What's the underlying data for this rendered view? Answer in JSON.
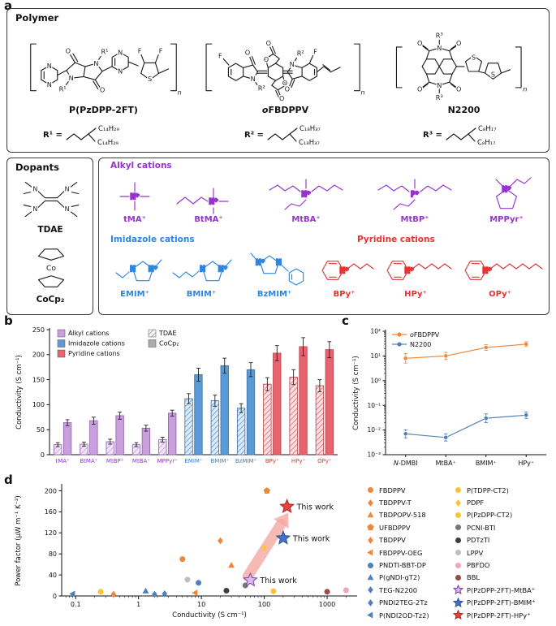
{
  "panels": {
    "a": "a",
    "b": "b",
    "c": "c",
    "d": "d"
  },
  "panel_a": {
    "polymer_box_title": "Polymer",
    "atoms": {
      "N": "N",
      "O": "O",
      "S": "S",
      "F": "F",
      "Co": "Co",
      "Nplus": "N⁺",
      "Pplus": "P⁺",
      "n": "n"
    },
    "polymers": [
      {
        "name": "P(PzDPP-2FT)",
        "r_site": "R¹",
        "r_def": "R¹ =",
        "chains": [
          "C₁₄H₂₉",
          "C₁₄H₂₉"
        ]
      },
      {
        "name_italic": "o",
        "name": "FBDPPV",
        "r_site": "R²",
        "r_def": "R² =",
        "chains": [
          "C₁₈H₃₇",
          "C₁₈H₃₇"
        ]
      },
      {
        "name": "N2200",
        "r_site": "R³",
        "r_def": "R³ =",
        "chains": [
          "C₈H₁₇",
          "C₈H₁₇"
        ]
      }
    ],
    "dopants": {
      "title": "Dopants",
      "items": [
        "TDAE",
        "CoCp₂"
      ]
    },
    "cation_groups": [
      {
        "title": "Alkyl cations",
        "color": "#9633CF",
        "items": [
          "tMA⁺",
          "BtMA⁺",
          "MtBA⁺",
          "MtBP⁺",
          "MPPyr⁺"
        ]
      },
      {
        "title": "Imidazole cations",
        "color": "#2E86DE",
        "items": [
          "EMIM⁺",
          "BMIM⁺",
          "BzMIM⁺"
        ]
      },
      {
        "title": "Pyridine cations",
        "color": "#E43535",
        "items": [
          "BPy⁺",
          "HPy⁺",
          "OPy⁺"
        ]
      }
    ]
  },
  "chart_data": [
    {
      "id": "b",
      "type": "bar",
      "ylabel": "Conductivity (S cm⁻¹)",
      "ylim": [
        0,
        250
      ],
      "yticks": [
        0,
        50,
        100,
        150,
        200,
        250
      ],
      "categories": [
        "tMA⁺",
        "BtMA⁺",
        "MtBP⁺",
        "MtBA⁺",
        "MPPyr⁺",
        "EMIM⁺",
        "BMIM⁺",
        "BzMIM⁺",
        "BPy⁺",
        "HPy⁺",
        "OPy⁺"
      ],
      "groups": [
        "alkyl",
        "alkyl",
        "alkyl",
        "alkyl",
        "alkyl",
        "imidazole",
        "imidazole",
        "imidazole",
        "pyridine",
        "pyridine",
        "pyridine"
      ],
      "group_styles": {
        "alkyl": {
          "fill": "#C9A0DC",
          "edge": "#8E5BAE",
          "hatch_bg": "#F0E4F8",
          "label": "#9633CF"
        },
        "imidazole": {
          "fill": "#5B9BD5",
          "edge": "#3A6FA5",
          "hatch_bg": "#DEEAF6",
          "label": "#2E86DE"
        },
        "pyridine": {
          "fill": "#E8636D",
          "edge": "#B2434C",
          "hatch_bg": "#FBDFE1",
          "label": "#E43535"
        }
      },
      "series": [
        {
          "name": "TDAE",
          "style": "hatched",
          "values": [
            20,
            21,
            26,
            20,
            30,
            112,
            108,
            93,
            141,
            155,
            138
          ],
          "errors": [
            4,
            4,
            5,
            4,
            5,
            10,
            11,
            9,
            13,
            15,
            12
          ]
        },
        {
          "name": "CoCp₂",
          "style": "solid",
          "values": [
            64,
            68,
            78,
            53,
            83,
            160,
            178,
            170,
            203,
            216,
            210
          ],
          "errors": [
            6,
            7,
            7,
            6,
            6,
            13,
            15,
            14,
            15,
            18,
            16
          ]
        }
      ],
      "legend_groups": [
        {
          "label": "Alkyl cations",
          "fill": "#C9A0DC"
        },
        {
          "label": "Imidazole cations",
          "fill": "#5B9BD5"
        },
        {
          "label": "Pyridine cations",
          "fill": "#E8636D"
        }
      ],
      "legend_series": [
        {
          "label": "TDAE",
          "style": "hatched"
        },
        {
          "label": "CoCp₂",
          "style": "solid",
          "fill": "#ABABAB"
        }
      ]
    },
    {
      "id": "c",
      "type": "line",
      "ylabel": "Conductivity (S cm⁻¹)",
      "yscale": "log",
      "ylim_exp": [
        -3,
        2
      ],
      "ytick_labels": [
        "10⁻³",
        "10⁻²",
        "10⁻¹",
        "10⁰",
        "10¹",
        "10²"
      ],
      "categories": [
        {
          "italic": "N",
          "text": "-DMBI"
        },
        "MtBA⁺",
        "BMIM⁺",
        "HPy⁺"
      ],
      "series": [
        {
          "name": {
            "italic": "o",
            "text": "FBDPPV"
          },
          "color": "#F0883B",
          "values": [
            8,
            10,
            22,
            30
          ],
          "err_frac": [
            0.55,
            0.4,
            0.3,
            0.25
          ]
        },
        {
          "name": "N2200",
          "color": "#4F81BD",
          "values": [
            0.007,
            0.005,
            0.03,
            0.04
          ],
          "err_frac": [
            0.45,
            0.4,
            0.5,
            0.35
          ]
        }
      ]
    },
    {
      "id": "d",
      "type": "scatter",
      "xlabel": "Conductivity (S cm⁻¹)",
      "ylabel": "Power factor (μW m⁻¹ K⁻²)",
      "xscale": "log",
      "xlim": [
        0.06,
        3000
      ],
      "xticks": [
        {
          "v": 0.1,
          "label": "0.1"
        },
        {
          "v": 1,
          "label": "1"
        },
        {
          "v": 10,
          "label": "10"
        },
        {
          "v": 100,
          "label": "100"
        },
        {
          "v": 1000,
          "label": "1000"
        }
      ],
      "ylim": [
        0,
        210
      ],
      "yticks": [
        0,
        40,
        80,
        120,
        160,
        200
      ],
      "annotation": "This work",
      "arrow": {
        "from_x": 55,
        "from_y": 38,
        "to_x": 240,
        "to_y": 158,
        "color": "#F5A9A2"
      },
      "points": [
        {
          "name": "FBDPPV",
          "marker": "circle",
          "color": "#F0883B",
          "x": 5,
          "y": 70
        },
        {
          "name": "TBDPPV-T",
          "marker": "diamond",
          "color": "#F0883B",
          "x": 20,
          "y": 105
        },
        {
          "name": "TBDPOPV-518",
          "marker": "triangle",
          "color": "#F0883B",
          "x": 30,
          "y": 58
        },
        {
          "name": "UFBDPPV",
          "marker": "pentagon",
          "color": "#F0883B",
          "x": 110,
          "y": 200
        },
        {
          "name": "TBDPPV",
          "marker": "diamond",
          "color": "#F0883B",
          "x": 0.4,
          "y": 3
        },
        {
          "name": "FBDPPV-OEG",
          "marker": "triangle-left",
          "color": "#F0883B",
          "x": 8,
          "y": 6
        },
        {
          "name": "PNDTI-BBT-DP",
          "marker": "circle",
          "color": "#4F81BD",
          "x": 9,
          "y": 25
        },
        {
          "name": "P(gNDI-gT2)",
          "marker": "triangle",
          "color": "#4F81BD",
          "x": 1.3,
          "y": 9
        },
        {
          "name": "TEG-N2200",
          "marker": "diamond",
          "color": "#4F81BD",
          "x": 1.8,
          "y": 3
        },
        {
          "name": "PNDI2TEG-2Tz",
          "marker": "diamond",
          "color": "#4F81BD",
          "x": 2.6,
          "y": 4
        },
        {
          "name": "P(NDI2OD-Tz2)",
          "marker": "triangle-left",
          "color": "#4F81BD",
          "x": 0.09,
          "y": 4
        },
        {
          "name": "P(TDPP-CT2)",
          "marker": "circle",
          "color": "#FFC234",
          "x": 0.25,
          "y": 8
        },
        {
          "name": "PDPF",
          "marker": "diamond",
          "color": "#FFC234",
          "x": 100,
          "y": 92
        },
        {
          "name": "P(PzDPP-CT2)",
          "marker": "circle",
          "color": "#FFC234",
          "x": 140,
          "y": 9
        },
        {
          "name": "PCNI-BTI",
          "marker": "circle",
          "color": "#767676",
          "x": 50,
          "y": 20
        },
        {
          "name": "PDTzTI",
          "marker": "circle",
          "color": "#3F3F3F",
          "x": 25,
          "y": 10
        },
        {
          "name": "LPPV",
          "marker": "circle",
          "color": "#BEBEBE",
          "x": 6,
          "y": 31
        },
        {
          "name": "PBFDO",
          "marker": "circle",
          "color": "#F6A6B2",
          "x": 2000,
          "y": 11
        },
        {
          "name": "BBL",
          "marker": "circle",
          "color": "#9C4A44",
          "x": 1000,
          "y": 8
        },
        {
          "name": "P(PzDPP-2FT)-MtBA⁺",
          "marker": "star",
          "color": "#8E44AD",
          "fill": "#D9BCEF",
          "x": 60,
          "y": 30,
          "annotate": true
        },
        {
          "name": "P(PzDPP-2FT)-BMIM⁺",
          "marker": "star",
          "color": "#2F5597",
          "fill": "#4472C4",
          "x": 200,
          "y": 110,
          "annotate": true
        },
        {
          "name": "P(PzDPP-2FT)-HPy⁺",
          "marker": "star",
          "color": "#B02A24",
          "fill": "#E8423C",
          "x": 230,
          "y": 170,
          "annotate": true
        }
      ]
    }
  ]
}
